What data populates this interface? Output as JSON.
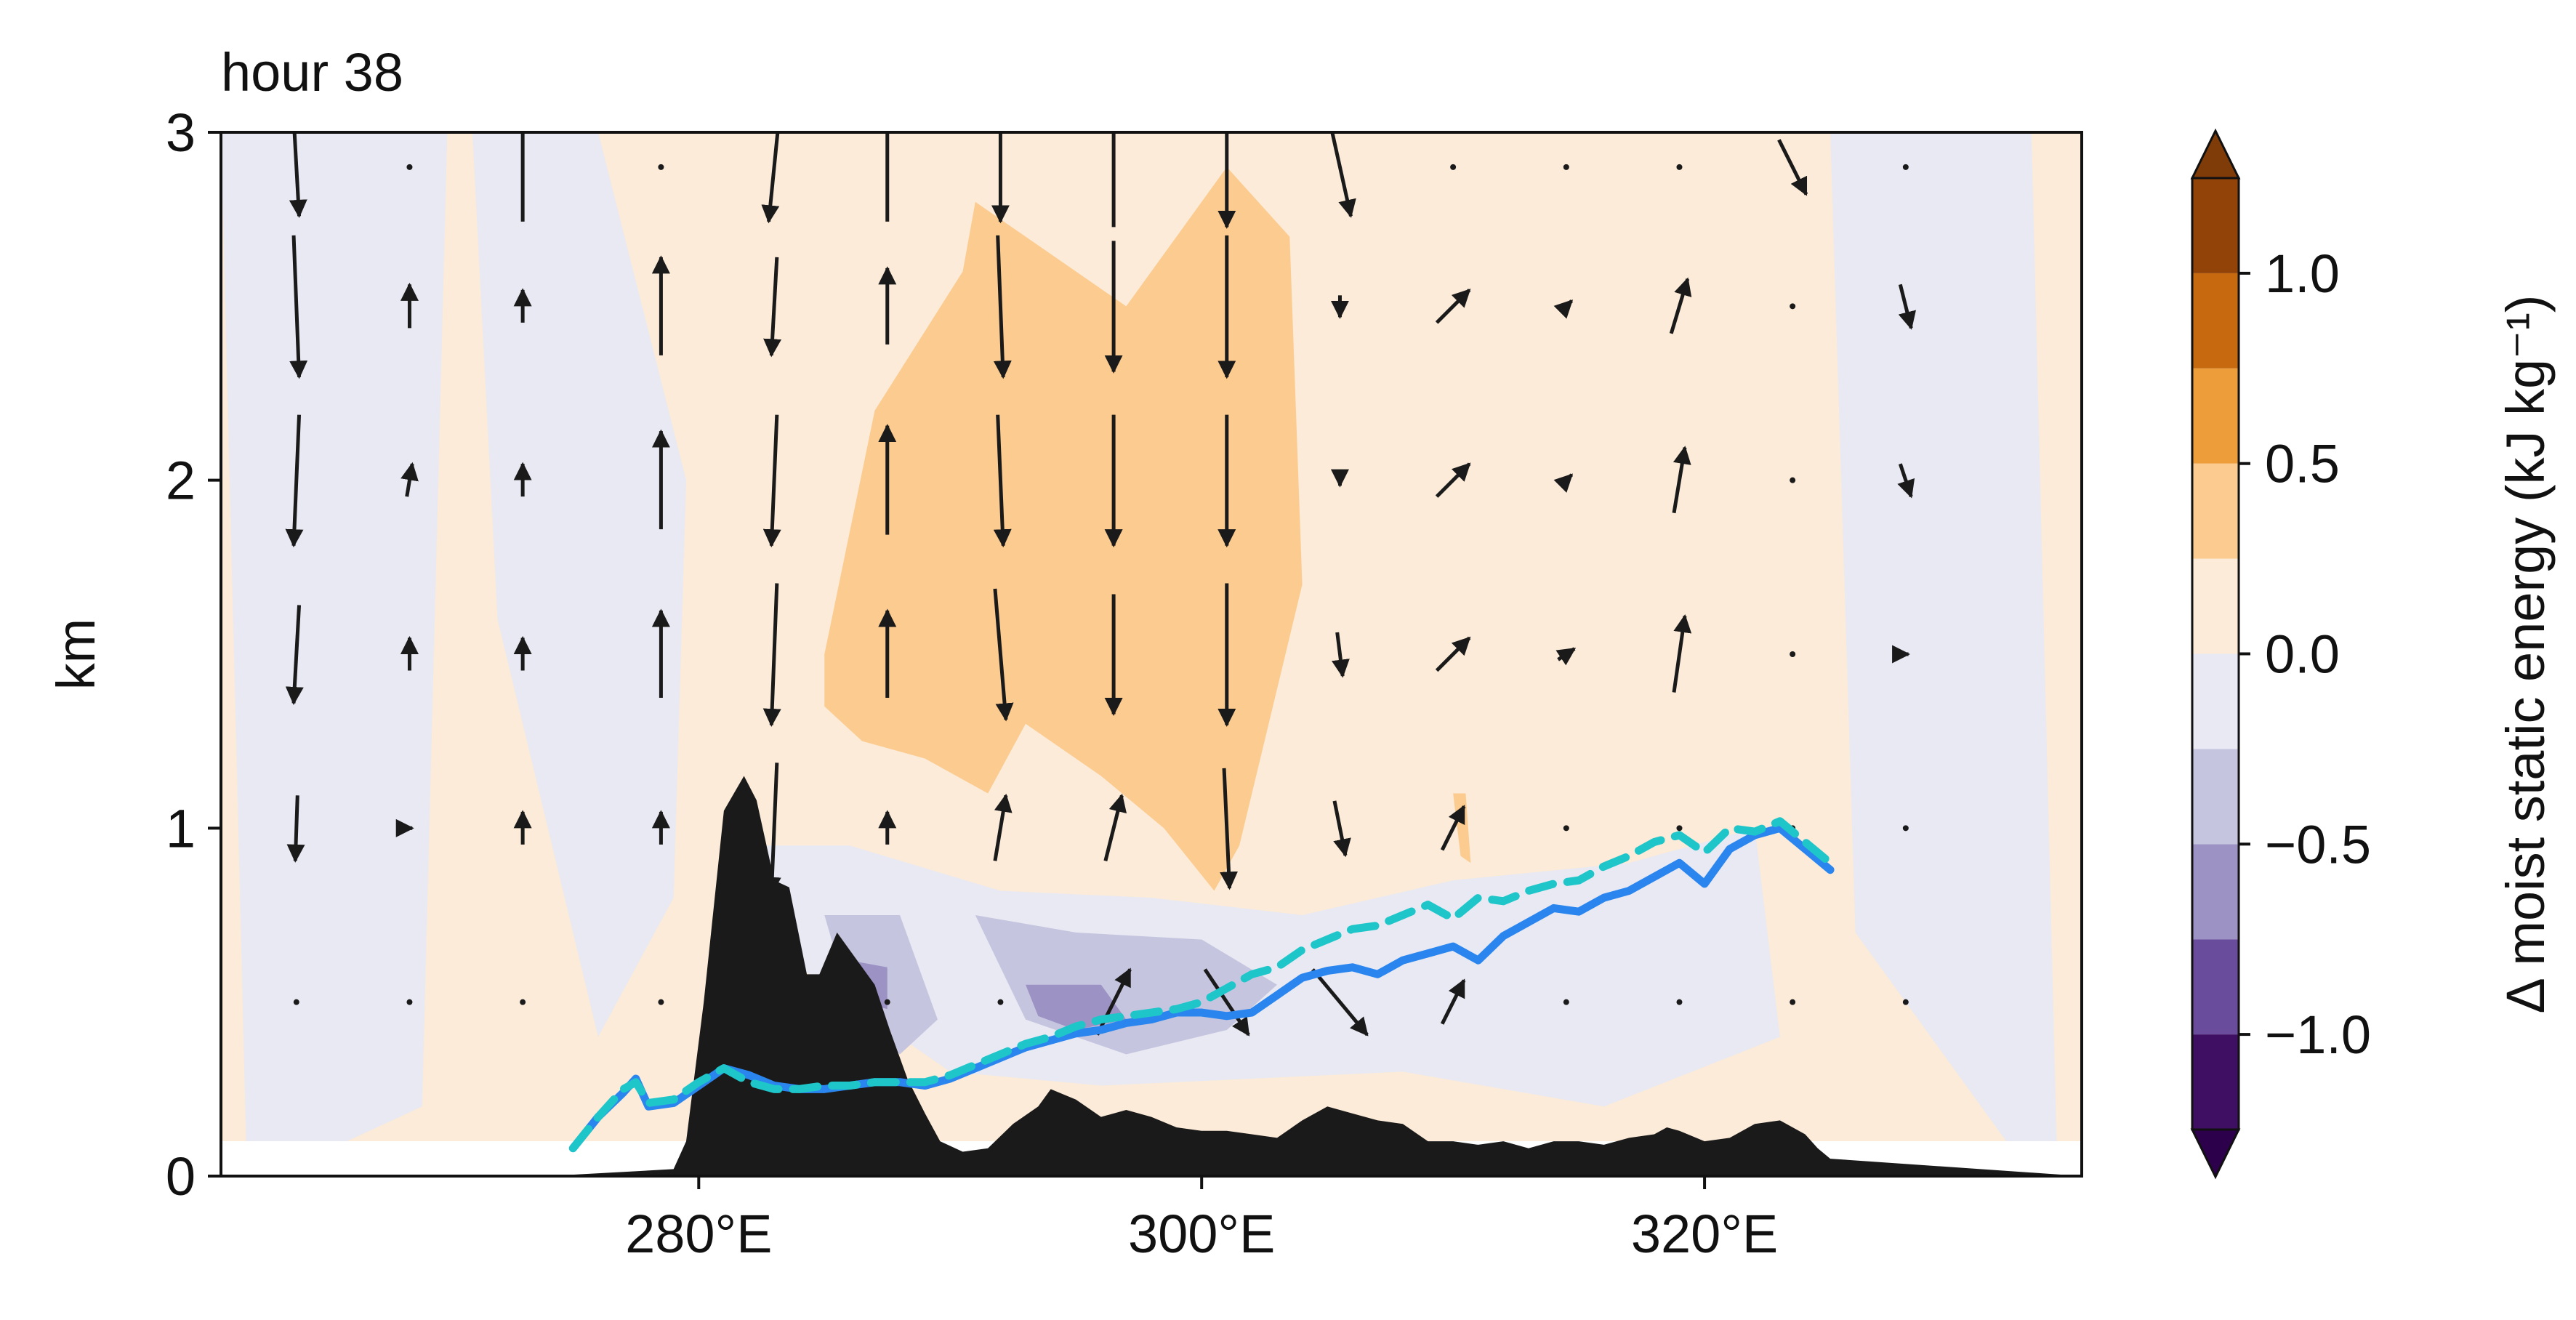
{
  "chart_data": {
    "type": "contour",
    "title": "hour 38",
    "ylabel": "km",
    "xlabel": "",
    "xlim": [
      261,
      335
    ],
    "ylim": [
      0,
      3
    ],
    "x_ticks": [
      {
        "value": 280,
        "label": "280°E"
      },
      {
        "value": 300,
        "label": "300°E"
      },
      {
        "value": 320,
        "label": "320°E"
      }
    ],
    "y_ticks": [
      {
        "value": 0,
        "label": "0"
      },
      {
        "value": 1,
        "label": "1"
      },
      {
        "value": 2,
        "label": "2"
      },
      {
        "value": 3,
        "label": "3"
      }
    ],
    "colorbar": {
      "label": "Δ moist static energy (kJ kg⁻¹)",
      "levels": [
        -1.25,
        -1.0,
        -0.75,
        -0.5,
        -0.25,
        0.0,
        0.25,
        0.5,
        0.75,
        1.0,
        1.25
      ],
      "colors": [
        "#3f0f63",
        "#6a4c9c",
        "#9c92c3",
        "#c6c5e0",
        "#e8e9f2",
        "#fbebd8",
        "#fccb8f",
        "#ee9d3b",
        "#c76a0f",
        "#924308"
      ],
      "extend_low_color": "#2d004b",
      "extend_high_color": "#7f3b08",
      "ticks": [
        {
          "value": -1.0,
          "label": "−1.0"
        },
        {
          "value": -0.5,
          "label": "−0.5"
        },
        {
          "value": 0.0,
          "label": "0.0"
        },
        {
          "value": 0.5,
          "label": "0.5"
        },
        {
          "value": 1.0,
          "label": "1.0"
        }
      ]
    },
    "terrain": {
      "color": "#1a1a1a",
      "x": [
        261,
        274,
        279,
        279.5,
        280.2,
        281,
        281.8,
        282.3,
        283,
        283.6,
        284.3,
        284.8,
        285.5,
        286.3,
        287,
        287.6,
        288.3,
        289,
        289.6,
        290.5,
        291.5,
        292.5,
        293.5,
        294,
        295,
        296,
        297,
        298,
        299,
        300,
        301,
        302,
        303,
        304,
        305,
        306,
        307,
        308,
        309,
        310,
        311,
        312,
        313,
        314,
        315,
        316,
        317,
        318,
        318.5,
        319,
        320,
        321,
        322,
        323,
        324,
        324.5,
        325,
        335
      ],
      "y": [
        0.0,
        0.0,
        0.02,
        0.1,
        0.5,
        1.05,
        1.15,
        1.08,
        0.85,
        0.83,
        0.58,
        0.58,
        0.7,
        0.62,
        0.55,
        0.42,
        0.28,
        0.18,
        0.1,
        0.07,
        0.08,
        0.15,
        0.2,
        0.25,
        0.22,
        0.17,
        0.19,
        0.17,
        0.14,
        0.13,
        0.13,
        0.12,
        0.11,
        0.16,
        0.2,
        0.18,
        0.16,
        0.15,
        0.1,
        0.1,
        0.09,
        0.1,
        0.08,
        0.1,
        0.1,
        0.09,
        0.11,
        0.12,
        0.14,
        0.13,
        0.1,
        0.11,
        0.15,
        0.16,
        0.12,
        0.08,
        0.05,
        0.0
      ]
    },
    "series": [
      {
        "style": "solid",
        "color": "#2a86ee",
        "x": [
          275,
          276,
          277,
          277.5,
          278,
          279,
          280,
          281,
          282,
          283,
          284,
          285,
          286,
          287,
          288,
          289,
          290,
          291,
          292,
          293,
          294,
          295,
          296,
          297,
          298,
          299,
          300,
          301,
          302,
          303,
          304,
          305,
          306,
          307,
          308,
          309,
          310,
          311,
          312,
          313,
          314,
          315,
          316,
          317,
          318,
          319,
          320,
          321,
          322,
          323,
          324,
          325
        ],
        "y": [
          0.08,
          0.17,
          0.24,
          0.28,
          0.2,
          0.21,
          0.26,
          0.31,
          0.29,
          0.26,
          0.25,
          0.25,
          0.26,
          0.27,
          0.27,
          0.26,
          0.28,
          0.31,
          0.34,
          0.37,
          0.39,
          0.41,
          0.42,
          0.44,
          0.45,
          0.47,
          0.47,
          0.46,
          0.47,
          0.52,
          0.57,
          0.59,
          0.6,
          0.58,
          0.62,
          0.64,
          0.66,
          0.62,
          0.69,
          0.73,
          0.77,
          0.76,
          0.8,
          0.82,
          0.86,
          0.9,
          0.84,
          0.94,
          0.98,
          1.0,
          0.94,
          0.88
        ]
      },
      {
        "style": "dashed",
        "color": "#1ec6c9",
        "x": [
          275,
          276,
          277,
          277.5,
          278,
          279,
          280,
          281,
          282,
          283,
          284,
          285,
          286,
          287,
          288,
          289,
          290,
          291,
          292,
          293,
          294,
          295,
          296,
          297,
          298,
          299,
          300,
          301,
          302,
          303,
          304,
          305,
          306,
          307,
          308,
          309,
          310,
          311,
          312,
          313,
          314,
          315,
          316,
          317,
          318,
          319,
          320,
          321,
          322,
          323,
          324,
          325
        ],
        "y": [
          0.08,
          0.17,
          0.25,
          0.27,
          0.21,
          0.22,
          0.27,
          0.31,
          0.27,
          0.25,
          0.25,
          0.26,
          0.26,
          0.27,
          0.27,
          0.27,
          0.29,
          0.32,
          0.35,
          0.38,
          0.4,
          0.43,
          0.45,
          0.46,
          0.47,
          0.48,
          0.5,
          0.54,
          0.58,
          0.6,
          0.65,
          0.68,
          0.71,
          0.72,
          0.75,
          0.78,
          0.74,
          0.8,
          0.79,
          0.82,
          0.84,
          0.85,
          0.89,
          0.92,
          0.96,
          0.98,
          0.93,
          1.0,
          0.99,
          1.02,
          0.96,
          0.9
        ]
      }
    ],
    "vectors": {
      "color": "#1a1a1a",
      "x": [
        264,
        268.5,
        273,
        278.5,
        283,
        287.5,
        292,
        296.5,
        301,
        305.5,
        310,
        314.5,
        319,
        323.5,
        328
      ],
      "y": [
        2.9,
        2.5,
        2.0,
        1.5,
        1.0,
        0.5
      ],
      "u": [
        [
          0.05,
          0,
          0,
          0,
          -0.1,
          0,
          0,
          0,
          0,
          0.2,
          0,
          0,
          0,
          0.25,
          0
        ],
        [
          0.05,
          0,
          0,
          0,
          -0.05,
          0,
          0.05,
          0,
          0,
          0,
          0.3,
          0.1,
          0.15,
          0,
          0.1
        ],
        [
          -0.05,
          0.05,
          0,
          0,
          -0.05,
          0,
          0.05,
          0,
          0,
          0,
          0.3,
          0.1,
          0.1,
          0,
          0.1
        ],
        [
          -0.05,
          0,
          0,
          0,
          -0.05,
          0,
          0.1,
          0,
          0,
          0.05,
          0.3,
          0.15,
          0.1,
          0,
          0.05
        ],
        [
          -0.02,
          0.05,
          0,
          0,
          -0.05,
          0,
          0.1,
          0.15,
          0.05,
          0.1,
          0.2,
          0,
          0,
          0,
          0
        ],
        [
          0,
          0,
          0,
          0,
          0,
          0,
          0,
          0.3,
          0.4,
          0.5,
          0.2,
          0,
          0,
          0,
          0
        ]
      ],
      "v": [
        [
          -0.9,
          0,
          1.0,
          0,
          -1.0,
          1.0,
          -1.0,
          1.1,
          -1.1,
          -0.9,
          0,
          0,
          0,
          -0.5,
          0
        ],
        [
          -1.3,
          0.4,
          0.3,
          0.9,
          -0.9,
          0.7,
          -1.3,
          -1.2,
          -1.3,
          -0.2,
          0.3,
          0.1,
          0.5,
          0,
          -0.4
        ],
        [
          -1.2,
          0.3,
          0.3,
          0.9,
          -1.2,
          1.0,
          -1.2,
          -1.2,
          -1.2,
          -0.1,
          0.3,
          0.1,
          0.6,
          0,
          -0.3
        ],
        [
          -0.9,
          0.3,
          0.3,
          0.8,
          -1.3,
          0.8,
          -1.2,
          -1.1,
          -1.3,
          -0.4,
          0.3,
          0.1,
          0.7,
          0,
          0
        ],
        [
          -0.6,
          0,
          0.3,
          0.3,
          -1.2,
          0.3,
          0.6,
          0.6,
          -1.1,
          -0.5,
          0.4,
          0,
          0,
          0,
          0
        ],
        [
          0,
          0,
          0,
          0,
          0,
          0,
          0,
          0.6,
          -0.6,
          -0.6,
          0.4,
          0,
          0,
          0,
          0
        ]
      ]
    },
    "field_regions": [
      {
        "name": "negative-0.25-west",
        "x": [
          261,
          270,
          269,
          266,
          262
        ],
        "y": [
          3.0,
          3.0,
          0.2,
          0.1,
          0.1
        ]
      },
      {
        "name": "negative-0.25-mid",
        "x": [
          271,
          276,
          279.5,
          279,
          276,
          272
        ],
        "y": [
          3.0,
          3.0,
          2.0,
          0.8,
          0.4,
          1.6
        ]
      },
      {
        "name": "negative-0.25-low",
        "x": [
          282,
          286,
          292,
          298,
          304,
          310,
          317,
          322,
          323,
          316,
          308,
          302,
          296,
          290,
          284
        ],
        "y": [
          0.95,
          0.95,
          0.82,
          0.8,
          0.75,
          0.85,
          0.9,
          1.0,
          0.4,
          0.2,
          0.3,
          0.28,
          0.26,
          0.3,
          0.6
        ]
      },
      {
        "name": "negative-0.25-east",
        "x": [
          325,
          327,
          333,
          334,
          332,
          326
        ],
        "y": [
          3.0,
          3.0,
          3.0,
          0.1,
          0.1,
          0.7
        ]
      },
      {
        "name": "negative-0.5-a",
        "x": [
          285,
          288,
          289.5,
          288,
          286
        ],
        "y": [
          0.75,
          0.75,
          0.45,
          0.35,
          0.5
        ]
      },
      {
        "name": "negative-0.5-b",
        "x": [
          291,
          295,
          300,
          303,
          301,
          297,
          293
        ],
        "y": [
          0.75,
          0.7,
          0.68,
          0.55,
          0.42,
          0.35,
          0.45
        ]
      },
      {
        "name": "negative-0.75-a",
        "x": [
          286,
          287.5,
          287.5,
          286.5
        ],
        "y": [
          0.62,
          0.6,
          0.48,
          0.5
        ]
      },
      {
        "name": "negative-0.75-b",
        "x": [
          293,
          296,
          297,
          295,
          293.5
        ],
        "y": [
          0.55,
          0.55,
          0.45,
          0.42,
          0.46
        ]
      },
      {
        "name": "positive-0.25-a",
        "x": [
          285,
          287,
          290.5,
          291,
          297,
          301,
          303.5,
          304,
          301.5,
          300.5,
          298.5,
          296,
          293,
          291.5,
          289,
          286.5,
          285
        ],
        "y": [
          1.5,
          2.2,
          2.6,
          2.8,
          2.5,
          2.9,
          2.7,
          1.7,
          0.95,
          0.82,
          1.0,
          1.15,
          1.3,
          1.1,
          1.2,
          1.25,
          1.35
        ]
      },
      {
        "name": "positive-0.25-b",
        "x": [
          310,
          310.5,
          310.7,
          310.3
        ],
        "y": [
          1.1,
          1.1,
          0.9,
          0.92
        ]
      }
    ]
  }
}
